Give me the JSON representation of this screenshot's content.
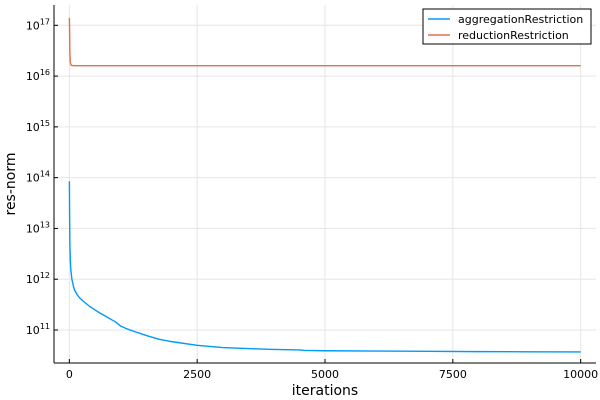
{
  "chart_data": {
    "type": "line",
    "xlabel": "iterations",
    "ylabel": "res-norm",
    "xlim": [
      -300,
      10300
    ],
    "ylim_log10": [
      10.35,
      17.4
    ],
    "yscale": "log",
    "grid": true,
    "legend_position": "top-right",
    "x_ticks": [
      {
        "value": 0,
        "label": "0"
      },
      {
        "value": 2500,
        "label": "2500"
      },
      {
        "value": 5000,
        "label": "5000"
      },
      {
        "value": 7500,
        "label": "7500"
      },
      {
        "value": 10000,
        "label": "10000"
      }
    ],
    "y_ticks": [
      {
        "exp": 11,
        "base": "10",
        "sup": "11"
      },
      {
        "exp": 12,
        "base": "10",
        "sup": "12"
      },
      {
        "exp": 13,
        "base": "10",
        "sup": "13"
      },
      {
        "exp": 14,
        "base": "10",
        "sup": "14"
      },
      {
        "exp": 15,
        "base": "10",
        "sup": "15"
      },
      {
        "exp": 16,
        "base": "10",
        "sup": "16"
      },
      {
        "exp": 17,
        "base": "10",
        "sup": "17"
      }
    ],
    "series": [
      {
        "name": "aggregationRestriction",
        "color": "#009af9",
        "x": [
          1,
          5,
          10,
          20,
          30,
          50,
          75,
          100,
          150,
          200,
          300,
          400,
          500,
          600,
          700,
          800,
          900,
          1000,
          1100,
          1250,
          1500,
          1750,
          2000,
          2500,
          3000,
          3500,
          4000,
          4500,
          4600,
          5000,
          6000,
          7000,
          8000,
          9000,
          10000
        ],
        "y": [
          85000000000000.0,
          20000000000000.0,
          5000000000000.0,
          2200000000000.0,
          1500000000000.0,
          1000000000000.0,
          760000000000.0,
          620000000000.0,
          500000000000.0,
          430000000000.0,
          350000000000.0,
          290000000000.0,
          250000000000.0,
          215000000000.0,
          190000000000.0,
          165000000000.0,
          145000000000.0,
          120000000000.0,
          108000000000.0,
          95000000000.0,
          78000000000.0,
          66000000000.0,
          59000000000.0,
          50000000000.0,
          45000000000.0,
          43000000000.0,
          41500000000.0,
          40500000000.0,
          39500000000.0,
          39000000000.0,
          38500000000.0,
          38000000000.0,
          37500000000.0,
          37200000000.0,
          37000000000.0
        ]
      },
      {
        "name": "reductionRestriction",
        "color": "#e26f46",
        "x": [
          1,
          5,
          10,
          20,
          40,
          100,
          1000,
          5000,
          10000
        ],
        "y": [
          1.4e+17,
          8e+16,
          3e+16,
          1.8e+16,
          1.62e+16,
          1.6e+16,
          1.6e+16,
          1.6e+16,
          1.6e+16
        ]
      }
    ]
  }
}
